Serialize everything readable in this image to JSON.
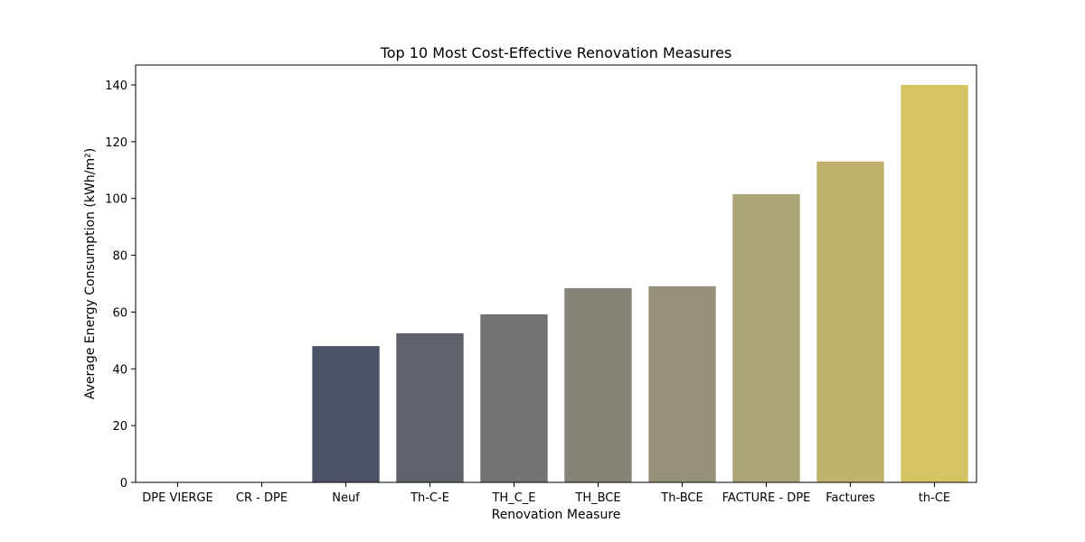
{
  "chart_data": {
    "type": "bar",
    "title": "Top 10 Most Cost-Effective Renovation Measures",
    "xlabel": "Renovation Measure",
    "ylabel": "Average Energy Consumption (kWh/m²)",
    "categories": [
      "DPE VIERGE",
      "CR - DPE",
      "Neuf",
      "Th-C-E",
      "TH_C_E",
      "TH_BCE",
      "Th-BCE",
      "FACTURE - DPE",
      "Factures",
      "th-CE"
    ],
    "values": [
      0,
      0,
      48,
      52.5,
      59.2,
      68.4,
      69.1,
      101.5,
      113,
      140
    ],
    "colors": [
      "#3a4569",
      "#434b68",
      "#4d5367",
      "#5e626b",
      "#737373",
      "#878379",
      "#98917a",
      "#aca377",
      "#c0b16d",
      "#d5c462"
    ],
    "ylim": [
      0,
      147
    ],
    "yticks": [
      0,
      20,
      40,
      60,
      80,
      100,
      120,
      140
    ],
    "grid": false,
    "legend": "none"
  }
}
